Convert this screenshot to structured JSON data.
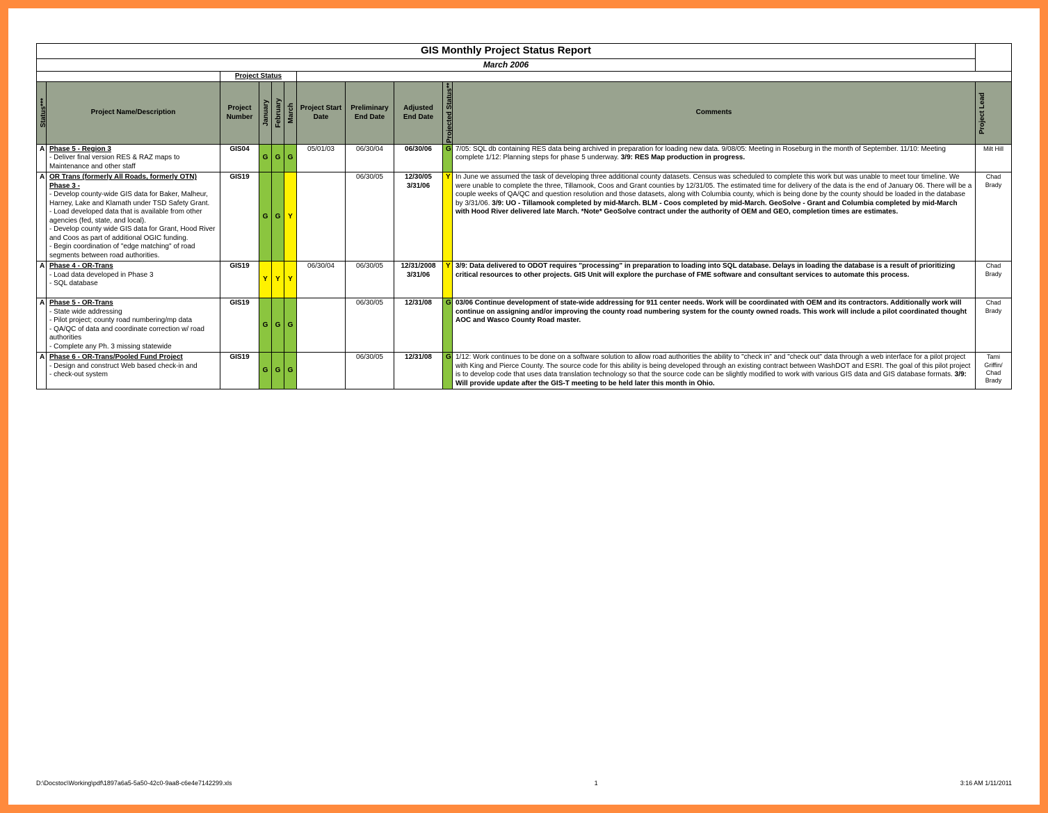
{
  "report": {
    "title": "GIS Monthly Project Status Report",
    "subtitle": "March 2006",
    "project_status_label": "Project Status"
  },
  "headers": {
    "status": "Status***",
    "name": "Project Name/Description",
    "number": "Project Number",
    "months": [
      "January",
      "February",
      "March"
    ],
    "start": "Project Start Date",
    "prelim": "Preliminary End Date",
    "adj": "Adjusted End Date",
    "proj_status": "Projected Status**",
    "comments": "Comments",
    "lead": "Project Lead"
  },
  "rows": [
    {
      "status": "A",
      "name_title": "Phase 5 - Region 3",
      "name_body": "- Deliver final version RES & RAZ maps to Maintenance and other staff",
      "number": "GIS04",
      "months": [
        "G",
        "G",
        "G"
      ],
      "start": "05/01/03",
      "prelim": "06/30/04",
      "adj": "06/30/06",
      "proj": "G",
      "comments": "7/05: SQL db containing RES data being archived in preparation for loading new data. 9/08/05: Meeting in Roseburg in the month of September. 11/10: Meeting complete 1/12: Planning steps for phase 5 underway.",
      "comments_bold": "3/9: RES Map production in progress.",
      "lead": "Milt Hill"
    },
    {
      "status": "A",
      "name_title": "OR Trans (formerly All Roads, formerly OTN)\nPhase 3 -",
      "name_body": "- Develop county-wide GIS data for Baker, Malheur, Harney, Lake and Klamath under TSD Safety Grant.\n- Load developed data that is available from other agencies (fed, state, and local).\n- Develop county wide GIS data for Grant, Hood River and Coos as part of additional OGIC funding.\n- Begin coordination of \"edge matching\" of road segments between road authorities.",
      "number": "GIS19",
      "months": [
        "G",
        "G",
        "Y"
      ],
      "start": "",
      "prelim": "06/30/05",
      "adj": "12/30/05 3/31/06",
      "proj": "Y",
      "comments": "In June we assumed the task of developing three additional county datasets. Census was scheduled to complete this work but was unable to meet tour timeline. We were unable to complete the three, Tillamook, Coos and Grant counties by 12/31/05. The estimated time for delivery of the data is the end of January 06. There will be a couple weeks of QA/QC and question resolution and those datasets, along with Columbia county, which is being done by the county should be loaded in the database by 3/31/06.",
      "comments_bold": "3/9: UO - Tillamook completed by mid-March. BLM - Coos completed by mid-March. GeoSolve - Grant and Columbia completed by mid-March with Hood River delivered late March. *Note* GeoSolve contract under the authority of OEM and GEO, completion times are estimates.",
      "lead": "Chad Brady"
    },
    {
      "status": "A",
      "name_title": "Phase 4 - OR-Trans",
      "name_body": "- Load data developed in Phase 3\n- SQL database",
      "number": "GIS19",
      "months": [
        "Y",
        "Y",
        "Y"
      ],
      "start": "06/30/04",
      "prelim": "06/30/05",
      "adj": "12/31/2008 3/31/06",
      "proj": "Y",
      "comments": "",
      "comments_bold": "3/9: Data delivered to ODOT requires \"processing\" in preparation to loading into SQL database. Delays in loading the database is a result of prioritizing critical resources to other projects. GIS Unit will explore the purchase of FME software and consultant services to automate this process.",
      "lead": "Chad Brady",
      "row_pad": true
    },
    {
      "status": "A",
      "name_title": " Phase 5 - OR-Trans",
      "name_body": "- State wide addressing\n- Pilot project; county road numbering/mp data\n- QA/QC of data and coordinate correction w/ road authorities\n- Complete any Ph. 3 missing statewide",
      "number": "GIS19",
      "months": [
        "G",
        "G",
        "G"
      ],
      "start": "",
      "prelim": "06/30/05",
      "adj": "12/31/08",
      "proj": "G",
      "comments": "",
      "comments_bold": "03/06 Continue development of state-wide addressing for 911 center needs. Work will be coordinated with OEM and its contractors. Additionally work will continue on assigning and/or improving the county road numbering system for the county owned roads. This work will include a pilot coordinated thought AOC and Wasco County Road master.",
      "lead": "Chad Brady"
    },
    {
      "status": "A",
      "name_title": "Phase 6 - OR-Trans/Pooled Fund Project",
      "name_body": "- Design and construct Web based check-in and\n- check-out system",
      "number": "GIS19",
      "months": [
        "G",
        "G",
        "G"
      ],
      "start": "",
      "prelim": "06/30/05",
      "adj": "12/31/08",
      "proj": "G",
      "comments": "1/12: Work continues to be done on a software solution to allow road authorities the ability to \"check in\" and \"check out\" data through a web interface for a pilot project with King and Pierce County. The source code for this ability is being developed through an existing contract between WashDOT and ESRI. The goal of this pilot project is to develop code that uses data translation technology so that the source code can be slightly modified to work with various GIS data and GIS database formats.",
      "comments_bold": "3/9: Will provide update after the GIS-T meeting to be held later this month in Ohio.",
      "lead": "Tami Griffin/ Chad Brady"
    }
  ],
  "footer": {
    "path": "D:\\Docstoc\\Working\\pdf\\1897a6a5-5a50-42c0-9aa8-c6e4e7142299.xls",
    "page": "1",
    "stamp": "3:16 AM   1/11/2011"
  },
  "colors": {
    "border": "#ff8a3d",
    "header": "#99a38f",
    "green": "#8bc53f",
    "yellow": "#fff200"
  }
}
